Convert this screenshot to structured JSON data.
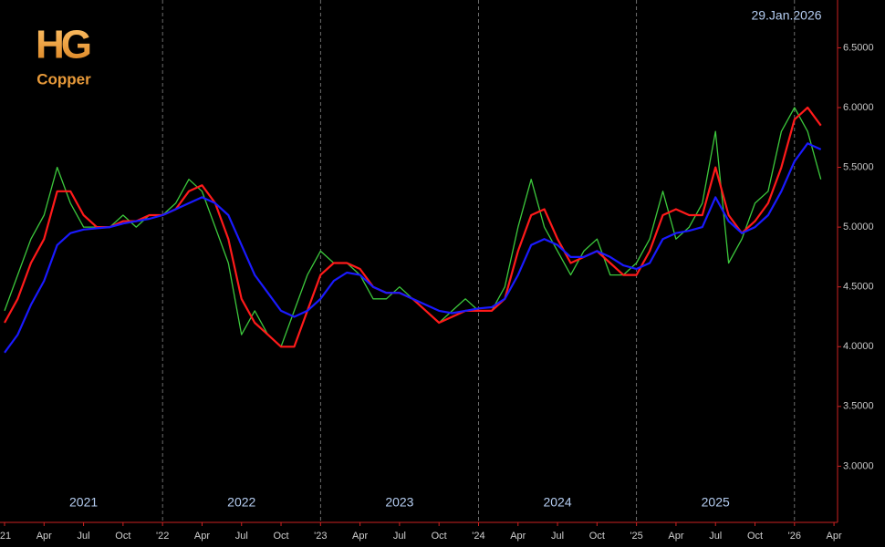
{
  "chart_data": {
    "type": "line",
    "brand": "HG",
    "title": "Copper",
    "date_label": "29.Jan.2026",
    "categories": [
      "'21",
      null,
      null,
      "Apr",
      null,
      null,
      "Jul",
      null,
      null,
      "Oct",
      null,
      null,
      "'22",
      null,
      null,
      "Apr",
      null,
      null,
      "Jul",
      null,
      null,
      "Oct",
      null,
      null,
      "'23",
      null,
      null,
      "Apr",
      null,
      null,
      "Jul",
      null,
      null,
      "Oct",
      null,
      null,
      "'24",
      null,
      null,
      "Apr",
      null,
      null,
      "Jul",
      null,
      null,
      "Oct",
      null,
      null,
      "'25",
      null,
      null,
      "Apr",
      null,
      null,
      "Jul",
      null,
      null,
      "Oct",
      null,
      null,
      "'26",
      null,
      null,
      "Apr"
    ],
    "year_labels": [
      "2021",
      "2022",
      "2023",
      "2024",
      "2025"
    ],
    "series": [
      {
        "color": "#3cc83c",
        "values": [
          4.3,
          4.6,
          4.9,
          5.1,
          5.5,
          5.2,
          5.0,
          5.0,
          5.0,
          5.1,
          5.0,
          5.1,
          5.1,
          5.2,
          5.4,
          5.3,
          5.0,
          4.7,
          4.1,
          4.3,
          4.1,
          4.0,
          4.3,
          4.6,
          4.8,
          4.7,
          4.7,
          4.6,
          4.4,
          4.4,
          4.5,
          4.4,
          4.3,
          4.2,
          4.3,
          4.4,
          4.3,
          4.3,
          4.5,
          5.0,
          5.4,
          5.0,
          4.8,
          4.6,
          4.8,
          4.9,
          4.6,
          4.6,
          4.7,
          4.9,
          5.3,
          4.9,
          5.0,
          5.2,
          5.8,
          4.7,
          4.9,
          5.2,
          5.3,
          5.8,
          6.0,
          5.8,
          5.4,
          null
        ]
      },
      {
        "color": "#ff1a1a",
        "values": [
          4.2,
          4.4,
          4.7,
          4.9,
          5.3,
          5.3,
          5.1,
          5.0,
          5.0,
          5.05,
          5.05,
          5.1,
          5.1,
          5.15,
          5.3,
          5.35,
          5.2,
          4.9,
          4.4,
          4.2,
          4.1,
          4.0,
          4.0,
          4.3,
          4.6,
          4.7,
          4.7,
          4.65,
          4.5,
          4.45,
          4.45,
          4.4,
          4.3,
          4.2,
          4.25,
          4.3,
          4.3,
          4.3,
          4.4,
          4.8,
          5.1,
          5.15,
          4.9,
          4.7,
          4.75,
          4.8,
          4.7,
          4.6,
          4.6,
          4.8,
          5.1,
          5.15,
          5.1,
          5.1,
          5.5,
          5.1,
          4.95,
          5.05,
          5.2,
          5.5,
          5.9,
          6.0,
          5.85,
          null
        ]
      },
      {
        "color": "#1a1aff",
        "values": [
          3.95,
          4.1,
          4.35,
          4.55,
          4.85,
          4.95,
          4.98,
          4.99,
          5.0,
          5.03,
          5.05,
          5.07,
          5.1,
          5.15,
          5.2,
          5.25,
          5.2,
          5.1,
          4.85,
          4.6,
          4.45,
          4.3,
          4.25,
          4.3,
          4.4,
          4.55,
          4.62,
          4.6,
          4.5,
          4.45,
          4.45,
          4.4,
          4.35,
          4.3,
          4.28,
          4.3,
          4.32,
          4.33,
          4.4,
          4.6,
          4.85,
          4.9,
          4.85,
          4.75,
          4.75,
          4.8,
          4.75,
          4.68,
          4.65,
          4.7,
          4.9,
          4.95,
          4.97,
          5.0,
          5.25,
          5.05,
          4.95,
          5.0,
          5.1,
          5.3,
          5.55,
          5.7,
          5.65,
          null
        ]
      }
    ],
    "ylim": [
      2.53,
      6.9
    ],
    "yticks": [
      {
        "value": 3.0,
        "label": "3.0000"
      },
      {
        "value": 3.5,
        "label": "3.5000"
      },
      {
        "value": 4.0,
        "label": "4.0000"
      },
      {
        "value": 4.5,
        "label": "4.5000"
      },
      {
        "value": 5.0,
        "label": "5.0000"
      },
      {
        "value": 5.5,
        "label": "5.5000"
      },
      {
        "value": 6.0,
        "label": "6.0000"
      },
      {
        "value": 6.5,
        "label": "6.5000"
      }
    ]
  }
}
